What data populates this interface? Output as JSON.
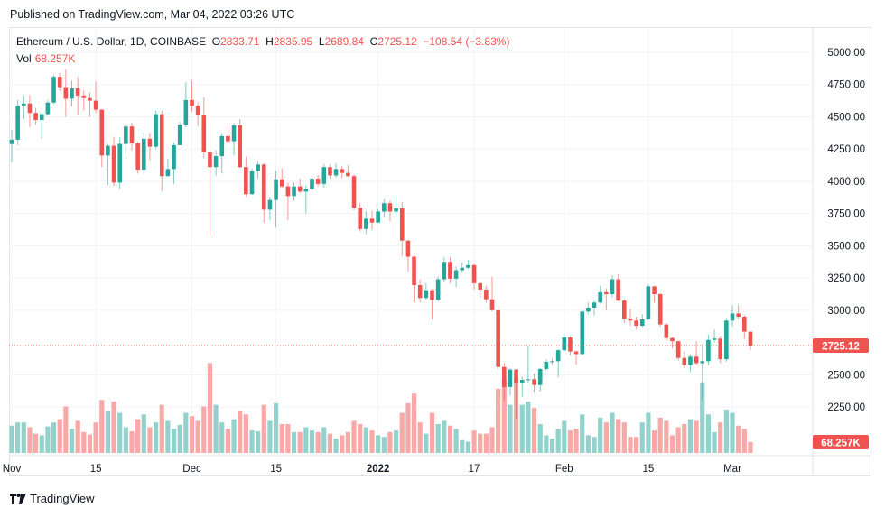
{
  "published": "Published on TradingView.com, Mar 04, 2022 03:26 UTC",
  "legend": {
    "symbol": "Ethereum / U.S. Dollar, 1D, COINBASE",
    "o_label": "O",
    "o": "2833.71",
    "h_label": "H",
    "h": "2835.95",
    "l_label": "L",
    "l": "2689.84",
    "c_label": "C",
    "c": "2725.12",
    "change": "−108.54 (−3.83%)"
  },
  "volume_legend": {
    "label": "Vol",
    "value": "68.257K"
  },
  "brand": "TradingView",
  "colors": {
    "up": "#26a69a",
    "down": "#ef5350",
    "up_volume": "#93d2cc",
    "down_volume": "#f8a9a7",
    "grid": "#f0f3fa"
  },
  "chart_data": {
    "type": "candlestick",
    "title": "Ethereum / U.S. Dollar, 1D, COINBASE",
    "ylim": [
      2150,
      5050
    ],
    "y_ticks": [
      "5000.00",
      "4750.00",
      "4500.00",
      "4250.00",
      "4000.00",
      "3750.00",
      "3500.00",
      "3250.00",
      "3000.00",
      "2500.00",
      "2250.00"
    ],
    "x_ticks": [
      {
        "label": "Nov",
        "date": "2021-11-01",
        "bold": false
      },
      {
        "label": "15",
        "date": "2021-11-15",
        "bold": false
      },
      {
        "label": "Dec",
        "date": "2021-12-01",
        "bold": false
      },
      {
        "label": "15",
        "date": "2021-12-15",
        "bold": false
      },
      {
        "label": "2022",
        "date": "2022-01-01",
        "bold": true
      },
      {
        "label": "17",
        "date": "2022-01-17",
        "bold": false
      },
      {
        "label": "Feb",
        "date": "2022-02-01",
        "bold": false
      },
      {
        "label": "15",
        "date": "2022-02-15",
        "bold": false
      },
      {
        "label": "Mar",
        "date": "2022-03-01",
        "bold": false
      }
    ],
    "last_price_label": "2725.12",
    "last_volume_label": "68.257K",
    "dates": [
      "2021-11-01",
      "2021-11-02",
      "2021-11-03",
      "2021-11-04",
      "2021-11-05",
      "2021-11-06",
      "2021-11-07",
      "2021-11-08",
      "2021-11-09",
      "2021-11-10",
      "2021-11-11",
      "2021-11-12",
      "2021-11-13",
      "2021-11-14",
      "2021-11-15",
      "2021-11-16",
      "2021-11-17",
      "2021-11-18",
      "2021-11-19",
      "2021-11-20",
      "2021-11-21",
      "2021-11-22",
      "2021-11-23",
      "2021-11-24",
      "2021-11-25",
      "2021-11-26",
      "2021-11-27",
      "2021-11-28",
      "2021-11-29",
      "2021-11-30",
      "2021-12-01",
      "2021-12-02",
      "2021-12-03",
      "2021-12-04",
      "2021-12-05",
      "2021-12-06",
      "2021-12-07",
      "2021-12-08",
      "2021-12-09",
      "2021-12-10",
      "2021-12-11",
      "2021-12-12",
      "2021-12-13",
      "2021-12-14",
      "2021-12-15",
      "2021-12-16",
      "2021-12-17",
      "2021-12-18",
      "2021-12-19",
      "2021-12-20",
      "2021-12-21",
      "2021-12-22",
      "2021-12-23",
      "2021-12-24",
      "2021-12-25",
      "2021-12-26",
      "2021-12-27",
      "2021-12-28",
      "2021-12-29",
      "2021-12-30",
      "2021-12-31",
      "2022-01-01",
      "2022-01-02",
      "2022-01-03",
      "2022-01-04",
      "2022-01-05",
      "2022-01-06",
      "2022-01-07",
      "2022-01-08",
      "2022-01-09",
      "2022-01-10",
      "2022-01-11",
      "2022-01-12",
      "2022-01-13",
      "2022-01-14",
      "2022-01-15",
      "2022-01-16",
      "2022-01-17",
      "2022-01-18",
      "2022-01-19",
      "2022-01-20",
      "2022-01-21",
      "2022-01-22",
      "2022-01-23",
      "2022-01-24",
      "2022-01-25",
      "2022-01-26",
      "2022-01-27",
      "2022-01-28",
      "2022-01-29",
      "2022-01-30",
      "2022-01-31",
      "2022-02-01",
      "2022-02-02",
      "2022-02-03",
      "2022-02-04",
      "2022-02-05",
      "2022-02-06",
      "2022-02-07",
      "2022-02-08",
      "2022-02-09",
      "2022-02-10",
      "2022-02-11",
      "2022-02-12",
      "2022-02-13",
      "2022-02-14",
      "2022-02-15",
      "2022-02-16",
      "2022-02-17",
      "2022-02-18",
      "2022-02-19",
      "2022-02-20",
      "2022-02-21",
      "2022-02-22",
      "2022-02-23",
      "2022-02-24",
      "2022-02-25",
      "2022-02-26",
      "2022-02-27",
      "2022-02-28",
      "2022-03-01",
      "2022-03-02",
      "2022-03-03",
      "2022-03-04"
    ],
    "open": [
      4288,
      4322,
      4588,
      4603,
      4530,
      4475,
      4520,
      4610,
      4810,
      4730,
      4640,
      4720,
      4665,
      4645,
      4625,
      4555,
      4200,
      4275,
      3990,
      4290,
      4425,
      4295,
      4090,
      4330,
      4268,
      4520,
      4040,
      4095,
      4280,
      4440,
      4630,
      4585,
      4510,
      4225,
      4110,
      4195,
      4350,
      4310,
      4435,
      4110,
      3900,
      4080,
      4130,
      3780,
      3855,
      4015,
      3960,
      3885,
      3960,
      3920,
      3940,
      4020,
      3980,
      4110,
      4045,
      4095,
      4065,
      4040,
      3795,
      3630,
      3710,
      3680,
      3765,
      3830,
      3765,
      3790,
      3540,
      3415,
      3195,
      3095,
      3155,
      3080,
      3240,
      3375,
      3245,
      3310,
      3330,
      3350,
      3210,
      3160,
      3085,
      3000,
      2560,
      2405,
      2540,
      2440,
      2460,
      2465,
      2420,
      2545,
      2600,
      2605,
      2690,
      2790,
      2680,
      2660,
      2990,
      3020,
      3060,
      3140,
      3125,
      3240,
      3075,
      2935,
      2920,
      2880,
      2930,
      3185,
      3125,
      2890,
      2785,
      2760,
      2630,
      2575,
      2640,
      2590,
      2605,
      2770,
      2780,
      2620,
      2920,
      2975,
      2950,
      2833.71
    ],
    "high": [
      4400,
      4630,
      4665,
      4670,
      4570,
      4530,
      4630,
      4825,
      4840,
      4868,
      4780,
      4810,
      4705,
      4690,
      4775,
      4560,
      4290,
      4345,
      4340,
      4450,
      4455,
      4305,
      4380,
      4375,
      4550,
      4550,
      4175,
      4300,
      4460,
      4770,
      4780,
      4610,
      4650,
      4235,
      4240,
      4375,
      4430,
      4450,
      4480,
      4190,
      4100,
      4160,
      4140,
      3880,
      4080,
      4100,
      3990,
      3990,
      4020,
      3970,
      4040,
      4050,
      4135,
      4130,
      4140,
      4120,
      4125,
      4055,
      3830,
      3770,
      3770,
      3780,
      3860,
      3850,
      3890,
      3840,
      3545,
      3420,
      3240,
      3210,
      3165,
      3260,
      3410,
      3410,
      3340,
      3370,
      3390,
      3360,
      3220,
      3190,
      3260,
      3040,
      2590,
      2550,
      2545,
      2485,
      2720,
      2510,
      2550,
      2620,
      2625,
      2700,
      2815,
      2800,
      2690,
      3000,
      3060,
      3080,
      3190,
      3170,
      3270,
      3280,
      3090,
      3010,
      2950,
      2970,
      3200,
      3190,
      3135,
      2900,
      2790,
      2765,
      2680,
      2655,
      2760,
      2740,
      2810,
      2850,
      2800,
      2940,
      3040,
      3040,
      2965,
      2835.95
    ],
    "low": [
      4150,
      4280,
      4480,
      4420,
      4440,
      4330,
      4510,
      4600,
      4700,
      4500,
      4580,
      4510,
      4550,
      4500,
      4530,
      4110,
      3970,
      3960,
      3940,
      4210,
      4240,
      4060,
      4060,
      4165,
      4250,
      3920,
      4040,
      3980,
      4280,
      4420,
      4540,
      4430,
      4180,
      3575,
      4040,
      4060,
      4300,
      4200,
      4100,
      3880,
      3895,
      4020,
      3680,
      3700,
      3640,
      3950,
      3700,
      3850,
      3910,
      3750,
      3930,
      3960,
      3950,
      4020,
      4030,
      4025,
      4030,
      3775,
      3610,
      3590,
      3620,
      3675,
      3720,
      3690,
      3730,
      3420,
      3300,
      3060,
      3060,
      3080,
      2930,
      3070,
      3220,
      3210,
      3180,
      3290,
      3320,
      3160,
      3100,
      3060,
      2990,
      2540,
      2300,
      2340,
      2160,
      2330,
      2440,
      2360,
      2370,
      2530,
      2580,
      2480,
      2680,
      2650,
      2580,
      2650,
      2975,
      2960,
      3050,
      3000,
      3100,
      3070,
      2900,
      2880,
      2850,
      2870,
      2920,
      3060,
      2870,
      2760,
      2705,
      2610,
      2550,
      2520,
      2580,
      2300,
      2575,
      2750,
      2590,
      2600,
      2875,
      2930,
      2780,
      2689.84
    ],
    "close": [
      4322,
      4588,
      4603,
      4530,
      4475,
      4520,
      4610,
      4810,
      4730,
      4640,
      4720,
      4665,
      4645,
      4625,
      4555,
      4200,
      4275,
      3990,
      4290,
      4425,
      4295,
      4090,
      4330,
      4268,
      4520,
      4040,
      4095,
      4280,
      4440,
      4630,
      4585,
      4510,
      4225,
      4110,
      4195,
      4350,
      4310,
      4435,
      4110,
      3900,
      4080,
      4130,
      3780,
      3855,
      4015,
      3960,
      3885,
      3960,
      3920,
      3940,
      4020,
      3980,
      4110,
      4045,
      4095,
      4065,
      4040,
      3795,
      3630,
      3710,
      3680,
      3765,
      3830,
      3765,
      3790,
      3540,
      3415,
      3195,
      3095,
      3155,
      3080,
      3240,
      3375,
      3245,
      3310,
      3330,
      3350,
      3210,
      3160,
      3085,
      3000,
      2560,
      2405,
      2540,
      2440,
      2460,
      2465,
      2420,
      2545,
      2600,
      2605,
      2690,
      2790,
      2680,
      2660,
      2990,
      3020,
      3060,
      3140,
      3125,
      3240,
      3075,
      2935,
      2920,
      2880,
      2930,
      3185,
      3125,
      2890,
      2785,
      2760,
      2630,
      2575,
      2640,
      2590,
      2605,
      2770,
      2780,
      2620,
      2920,
      2975,
      2950,
      2834,
      2725.12
    ],
    "volume_k": [
      170,
      190,
      190,
      160,
      120,
      110,
      165,
      190,
      210,
      290,
      150,
      200,
      130,
      115,
      190,
      330,
      260,
      320,
      250,
      160,
      135,
      210,
      240,
      160,
      190,
      300,
      200,
      150,
      175,
      250,
      230,
      200,
      290,
      560,
      300,
      190,
      150,
      210,
      260,
      240,
      140,
      135,
      300,
      200,
      310,
      180,
      180,
      130,
      130,
      160,
      140,
      130,
      160,
      120,
      90,
      110,
      130,
      200,
      180,
      160,
      140,
      110,
      100,
      130,
      140,
      250,
      310,
      370,
      190,
      120,
      250,
      180,
      200,
      170,
      150,
      80,
      70,
      140,
      120,
      120,
      160,
      400,
      460,
      300,
      470,
      300,
      320,
      280,
      180,
      110,
      90,
      150,
      200,
      140,
      150,
      240,
      110,
      100,
      220,
      190,
      250,
      210,
      190,
      100,
      100,
      190,
      250,
      140,
      220,
      200,
      110,
      160,
      180,
      210,
      200,
      440,
      240,
      130,
      190,
      270,
      250,
      170,
      150,
      68.257
    ]
  }
}
